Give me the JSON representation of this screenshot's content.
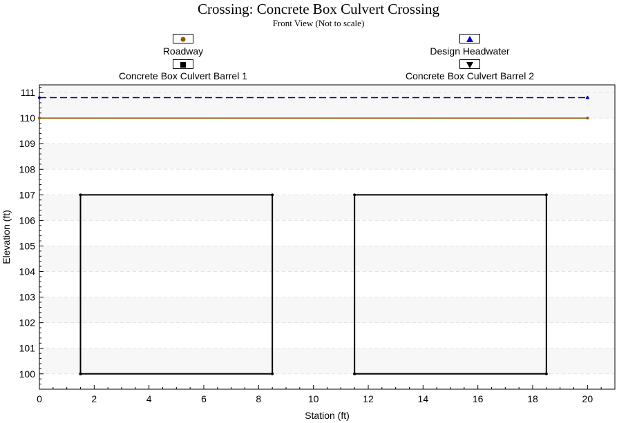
{
  "chart_data": {
    "type": "line",
    "title": "Crossing: Concrete Box Culvert Crossing",
    "subtitle": "Front View (Not to scale)",
    "xlabel": "Station (ft)",
    "ylabel": "Elevation (ft)",
    "xlim": [
      0,
      21
    ],
    "ylim": [
      99.4,
      111.3
    ],
    "xticks": [
      0,
      2,
      4,
      6,
      8,
      10,
      12,
      14,
      16,
      18,
      20
    ],
    "yticks": [
      100,
      101,
      102,
      103,
      104,
      105,
      106,
      107,
      108,
      109,
      110,
      111
    ],
    "legend_position": "top",
    "series": [
      {
        "name": "Roadway",
        "color": "#8B5A00",
        "marker": "circle",
        "line": "solid",
        "x": [
          0,
          20
        ],
        "y": [
          110,
          110
        ]
      },
      {
        "name": "Design Headwater",
        "color": "#00007F",
        "marker": "triangle-up",
        "line": "dashed",
        "x": [
          0,
          20
        ],
        "y": [
          110.8,
          110.8
        ]
      },
      {
        "name": "Concrete Box Culvert Barrel 1",
        "color": "#000000",
        "marker": "square",
        "line": "solid",
        "x": [
          1.5,
          8.5,
          8.5,
          1.5,
          1.5
        ],
        "y": [
          100,
          100,
          107,
          107,
          100
        ]
      },
      {
        "name": "Concrete Box Culvert Barrel 2",
        "color": "#000000",
        "marker": "triangle-down",
        "line": "solid",
        "x": [
          11.5,
          18.5,
          18.5,
          11.5,
          11.5
        ],
        "y": [
          100,
          100,
          107,
          107,
          100
        ]
      }
    ]
  }
}
